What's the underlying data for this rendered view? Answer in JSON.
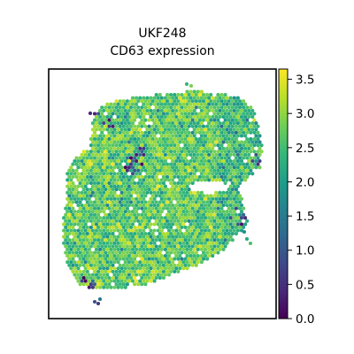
{
  "chart_data": {
    "type": "spatial_scatter",
    "title": [
      "UKF248",
      "CD63 expression"
    ],
    "colorbar": {
      "colormap": "viridis",
      "range": [
        0.0,
        3.65
      ],
      "ticks": [
        "0.0",
        "0.5",
        "1.0",
        "1.5",
        "2.0",
        "2.5",
        "3.0",
        "3.5"
      ],
      "tick_values": [
        0.0,
        0.5,
        1.0,
        1.5,
        2.0,
        2.5,
        3.0,
        3.5
      ]
    },
    "distribution": {
      "typical_range": [
        2.0,
        3.4
      ],
      "low_spots_near": [
        "upper-left interior cluster",
        "right edge",
        "bottom-left tail"
      ]
    },
    "axes": {
      "x_ticks": false,
      "y_ticks": false,
      "grid": false,
      "frame": true
    }
  },
  "colors": {
    "viridis_stops": [
      "#440154",
      "#482878",
      "#3e4989",
      "#31688e",
      "#26828e",
      "#1f9e89",
      "#35b779",
      "#6ece58",
      "#b5de2b",
      "#fde725"
    ],
    "background": "#ffffff",
    "frame": "#000000"
  }
}
